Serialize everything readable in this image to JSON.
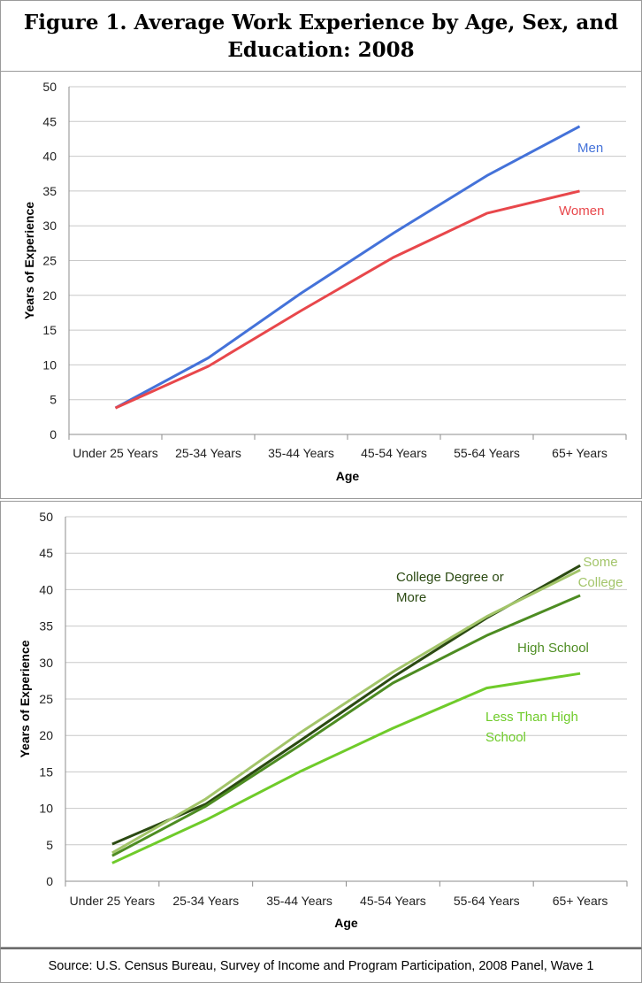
{
  "title": "Figure 1. Average Work Experience by Age, Sex, and Education: 2008",
  "source": "Source: U.S. Census Bureau, Survey of Income and Program Participation, 2008 Panel, Wave 1",
  "chart_data": [
    {
      "type": "line",
      "xlabel": "Age",
      "ylabel": "Years of Experience",
      "ylim": [
        0,
        50
      ],
      "yticks": [
        0,
        5,
        10,
        15,
        20,
        25,
        30,
        35,
        40,
        45,
        50
      ],
      "grid": true,
      "legend": "inline labels at line ends",
      "categories": [
        "Under 25 Years",
        "25-34 Years",
        "35-44 Years",
        "45-54 Years",
        "55-64 Years",
        "65+ Years"
      ],
      "series": [
        {
          "name": "Men",
          "color": "#4472d9",
          "values": [
            3.8,
            11.0,
            20.3,
            29.0,
            37.2,
            44.3
          ]
        },
        {
          "name": "Women",
          "color": "#e8474b",
          "values": [
            3.8,
            9.8,
            17.8,
            25.5,
            31.8,
            35.0
          ]
        }
      ]
    },
    {
      "type": "line",
      "xlabel": "Age",
      "ylabel": "Years of Experience",
      "ylim": [
        0,
        50
      ],
      "yticks": [
        0,
        5,
        10,
        15,
        20,
        25,
        30,
        35,
        40,
        45,
        50
      ],
      "grid": true,
      "legend": "inline labels near lines",
      "categories": [
        "Under 25 Years",
        "25-34 Years",
        "35-44 Years",
        "45-54 Years",
        "55-64 Years",
        "65+ Years"
      ],
      "series": [
        {
          "name": "College Degree or More",
          "color": "#2b4a12",
          "values": [
            5.1,
            10.6,
            19.2,
            28.0,
            36.1,
            43.3
          ]
        },
        {
          "name": "Some College",
          "color": "#a3c56a",
          "values": [
            3.9,
            11.3,
            20.3,
            28.7,
            36.3,
            42.7
          ]
        },
        {
          "name": "High School",
          "color": "#4d8c22",
          "values": [
            3.5,
            10.3,
            18.6,
            27.2,
            33.7,
            39.2
          ]
        },
        {
          "name": "Less Than High School",
          "color": "#6fcb2a",
          "values": [
            2.5,
            8.4,
            15.0,
            21.0,
            26.5,
            28.5
          ]
        }
      ]
    }
  ]
}
